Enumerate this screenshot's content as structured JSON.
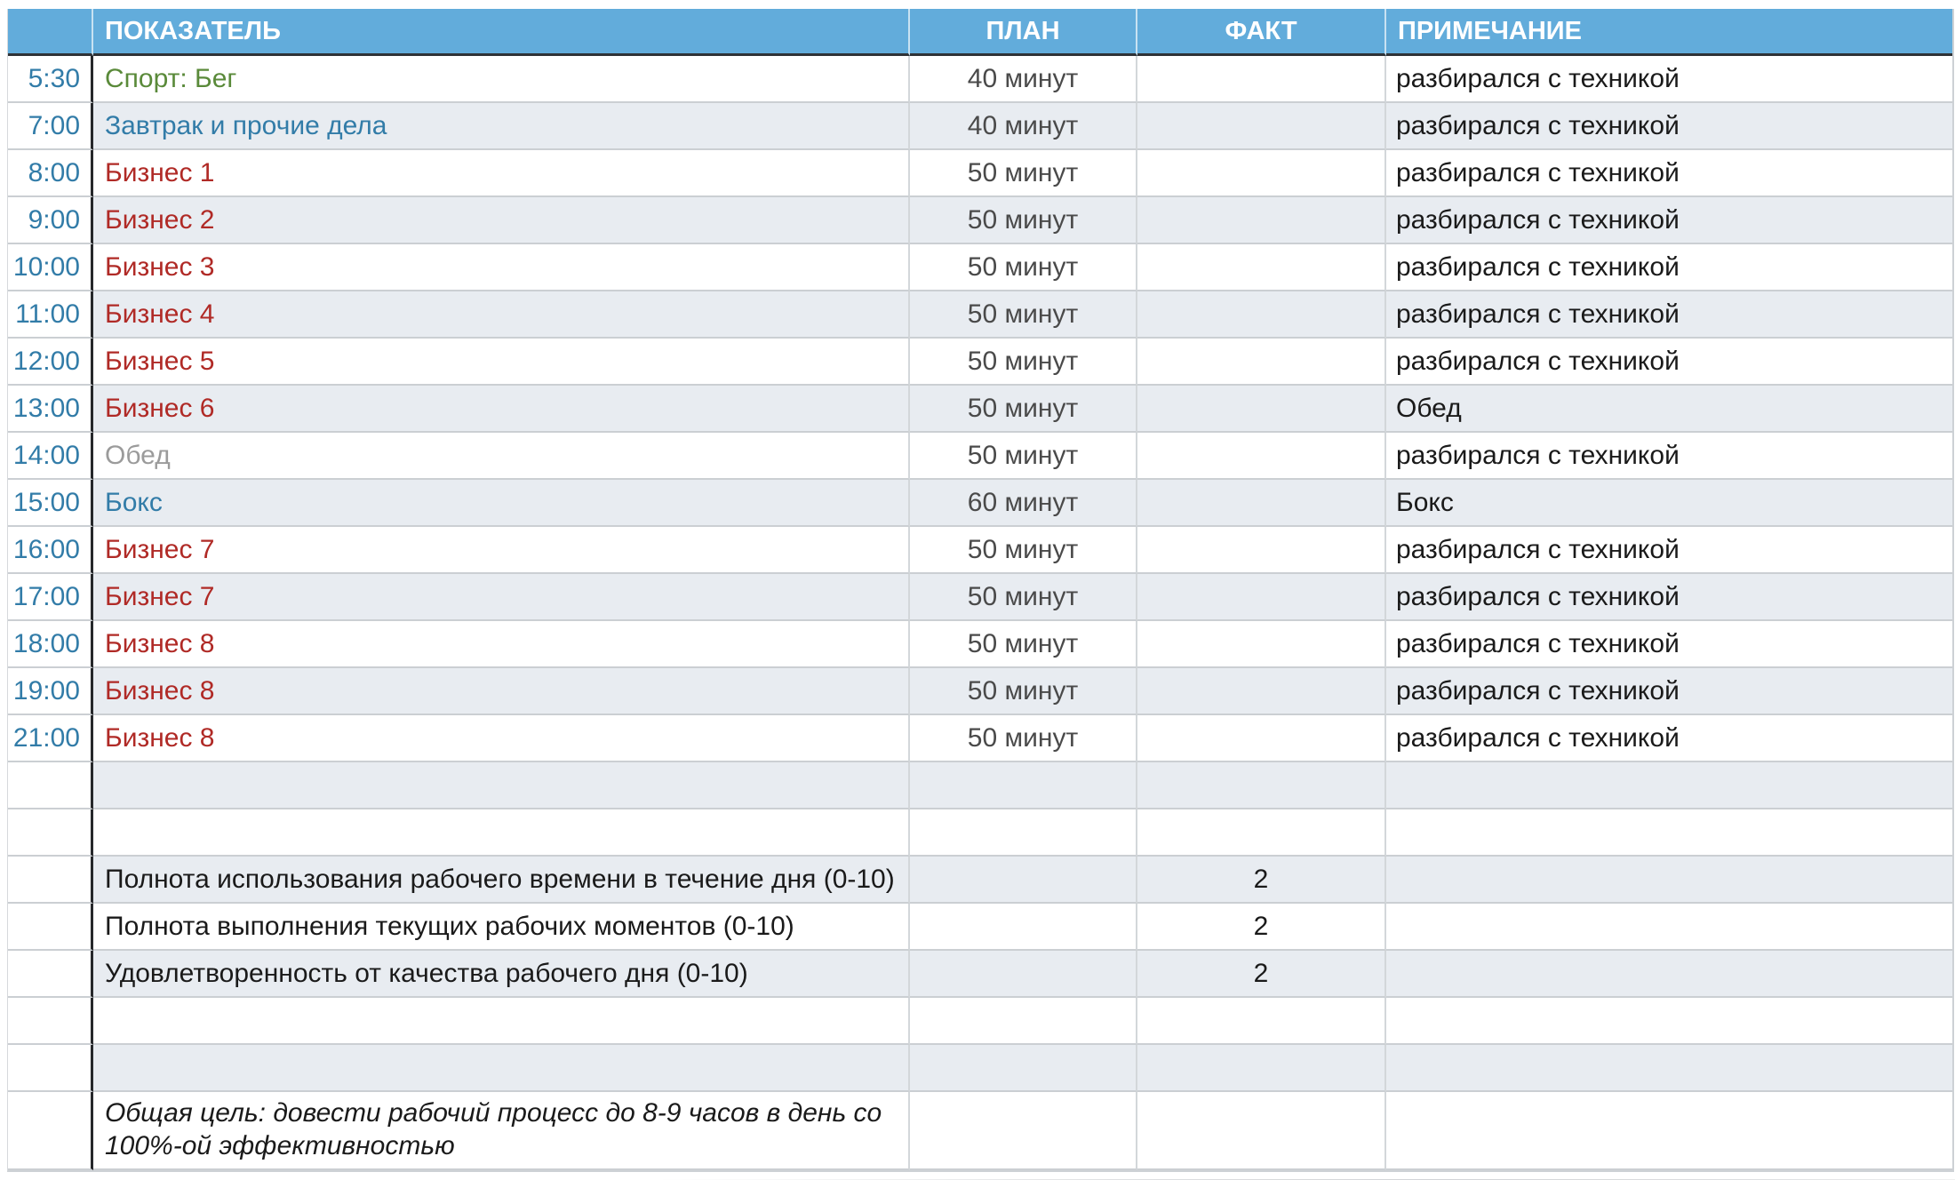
{
  "header": {
    "indicator": "ПОКАЗАТЕЛЬ",
    "plan": "ПЛАН",
    "fact": "ФАКТ",
    "note": "ПРИМЕЧАНИЕ"
  },
  "colors": {
    "header_bg": "#62acdb",
    "header_text": "#ffffff",
    "time_text": "#327ca8",
    "green": "#5a8a3a",
    "blue": "#327ca8",
    "red": "#b02a26",
    "gray": "#9b9b9b",
    "black": "#1a1a1a",
    "plan_text": "#4a4a4a",
    "shaded_row": "#e8ecf1",
    "border_light": "#cbcfd3",
    "border_dark": "#26282b"
  },
  "rows": [
    {
      "type": "schedule",
      "shaded": false,
      "time": "5:30",
      "activity": "Спорт: Бег",
      "color": "green",
      "plan": "40 минут",
      "fact": "",
      "note": "разбирался с техникой"
    },
    {
      "type": "schedule",
      "shaded": true,
      "time": "7:00",
      "activity": "Завтрак и прочие дела",
      "color": "blue",
      "plan": "40 минут",
      "fact": "",
      "note": "разбирался с техникой"
    },
    {
      "type": "schedule",
      "shaded": false,
      "time": "8:00",
      "activity": "Бизнес 1",
      "color": "red",
      "plan": "50 минут",
      "fact": "",
      "note": "разбирался с техникой"
    },
    {
      "type": "schedule",
      "shaded": true,
      "time": "9:00",
      "activity": "Бизнес 2",
      "color": "red",
      "plan": "50 минут",
      "fact": "",
      "note": "разбирался с техникой"
    },
    {
      "type": "schedule",
      "shaded": false,
      "time": "10:00",
      "activity": "Бизнес 3",
      "color": "red",
      "plan": "50 минут",
      "fact": "",
      "note": "разбирался с техникой"
    },
    {
      "type": "schedule",
      "shaded": true,
      "time": "11:00",
      "activity": "Бизнес 4",
      "color": "red",
      "plan": "50 минут",
      "fact": "",
      "note": "разбирался с техникой"
    },
    {
      "type": "schedule",
      "shaded": false,
      "time": "12:00",
      "activity": "Бизнес 5",
      "color": "red",
      "plan": "50 минут",
      "fact": "",
      "note": "разбирался с техникой"
    },
    {
      "type": "schedule",
      "shaded": true,
      "time": "13:00",
      "activity": "Бизнес 6",
      "color": "red",
      "plan": "50 минут",
      "fact": "",
      "note": "Обед"
    },
    {
      "type": "schedule",
      "shaded": false,
      "time": "14:00",
      "activity": "Обед",
      "color": "gray",
      "plan": "50 минут",
      "fact": "",
      "note": "разбирался с техникой"
    },
    {
      "type": "schedule",
      "shaded": true,
      "time": "15:00",
      "activity": "Бокс",
      "color": "blue",
      "plan": "60 минут",
      "fact": "",
      "note": "Бокс"
    },
    {
      "type": "schedule",
      "shaded": false,
      "time": "16:00",
      "activity": "Бизнес 7",
      "color": "red",
      "plan": "50 минут",
      "fact": "",
      "note": "разбирался с техникой"
    },
    {
      "type": "schedule",
      "shaded": true,
      "time": "17:00",
      "activity": "Бизнес 7",
      "color": "red",
      "plan": "50 минут",
      "fact": "",
      "note": "разбирался с техникой"
    },
    {
      "type": "schedule",
      "shaded": false,
      "time": "18:00",
      "activity": "Бизнес 8",
      "color": "red",
      "plan": "50 минут",
      "fact": "",
      "note": "разбирался с техникой"
    },
    {
      "type": "schedule",
      "shaded": true,
      "time": "19:00",
      "activity": "Бизнес 8",
      "color": "red",
      "plan": "50 минут",
      "fact": "",
      "note": "разбирался с техникой"
    },
    {
      "type": "schedule",
      "shaded": false,
      "time": "21:00",
      "activity": "Бизнес 8",
      "color": "red",
      "plan": "50 минут",
      "fact": "",
      "note": "разбирался с техникой"
    },
    {
      "type": "empty",
      "shaded": true,
      "time": "",
      "activity": "",
      "color": "black",
      "plan": "",
      "fact": "",
      "note": ""
    },
    {
      "type": "empty",
      "shaded": false,
      "time": "",
      "activity": "",
      "color": "black",
      "plan": "",
      "fact": "",
      "note": ""
    },
    {
      "type": "metric",
      "shaded": true,
      "time": "",
      "activity": "Полнота использования рабочего времени в течение дня (0-10)",
      "color": "black",
      "plan": "",
      "fact": "2",
      "note": ""
    },
    {
      "type": "metric",
      "shaded": false,
      "time": "",
      "activity": "Полнота выполнения текущих рабочих моментов (0-10)",
      "color": "black",
      "plan": "",
      "fact": "2",
      "note": ""
    },
    {
      "type": "metric",
      "shaded": true,
      "time": "",
      "activity": "Удовлетворенность от качества рабочего дня (0-10)",
      "color": "black",
      "plan": "",
      "fact": "2",
      "note": ""
    },
    {
      "type": "empty",
      "shaded": false,
      "time": "",
      "activity": "",
      "color": "black",
      "plan": "",
      "fact": "",
      "note": ""
    },
    {
      "type": "empty",
      "shaded": true,
      "time": "",
      "activity": "",
      "color": "black",
      "plan": "",
      "fact": "",
      "note": ""
    },
    {
      "type": "goal",
      "shaded": false,
      "time": "",
      "activity": "Общая цель: довести рабочий процесс до 8-9 часов в день со 100%-ой эффективностью",
      "color": "black",
      "plan": "",
      "fact": "",
      "note": ""
    }
  ]
}
